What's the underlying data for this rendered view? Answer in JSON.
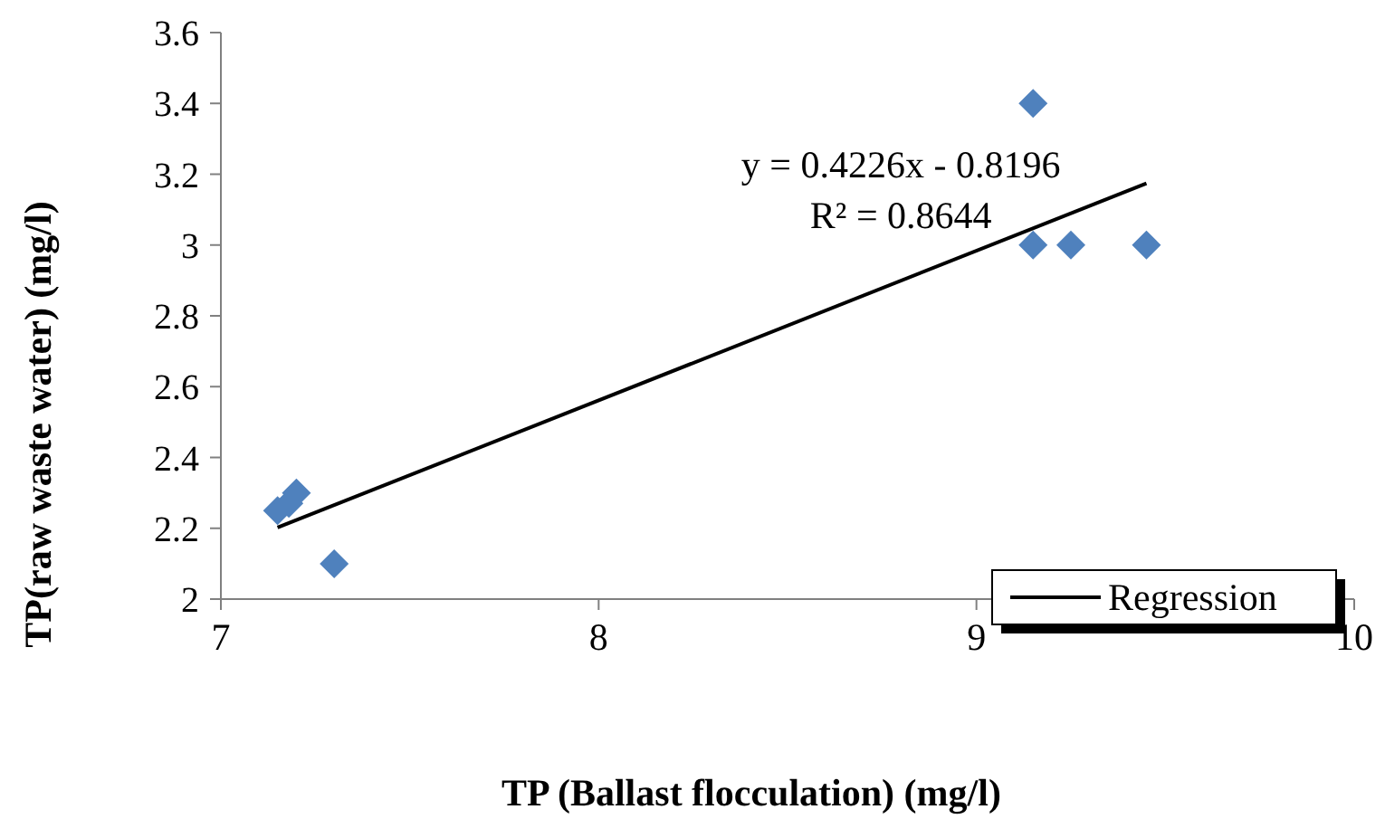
{
  "chart_data": {
    "type": "scatter",
    "xlabel": "TP (Ballast flocculation) (mg/l)",
    "ylabel": "TP(raw waste water) (mg/l)",
    "xlim": [
      7,
      10
    ],
    "xticks": [
      7,
      8,
      9,
      10
    ],
    "ylim": [
      2,
      3.6
    ],
    "yticks": [
      2,
      2.2,
      2.4,
      2.6,
      2.8,
      3,
      3.2,
      3.4,
      3.6
    ],
    "series": [
      {
        "color": "#4f81bd",
        "marker": "diamond",
        "x": [
          7.15,
          7.18,
          7.2,
          7.3,
          9.15,
          9.15,
          9.25,
          9.45
        ],
        "values": [
          2.25,
          2.27,
          2.3,
          2.1,
          3.4,
          3.0,
          3.0,
          3.0
        ]
      },
      {
        "type": "line",
        "name": "Regression",
        "color": "#000000",
        "marker": "none",
        "line_style": "solid",
        "x": [
          7.15,
          9.45
        ],
        "values": [
          2.202,
          3.174
        ]
      }
    ],
    "annotations": [
      "y = 0.4226x - 0.8196",
      "R² = 0.8644"
    ],
    "legend": "bottom right",
    "grid": false
  }
}
